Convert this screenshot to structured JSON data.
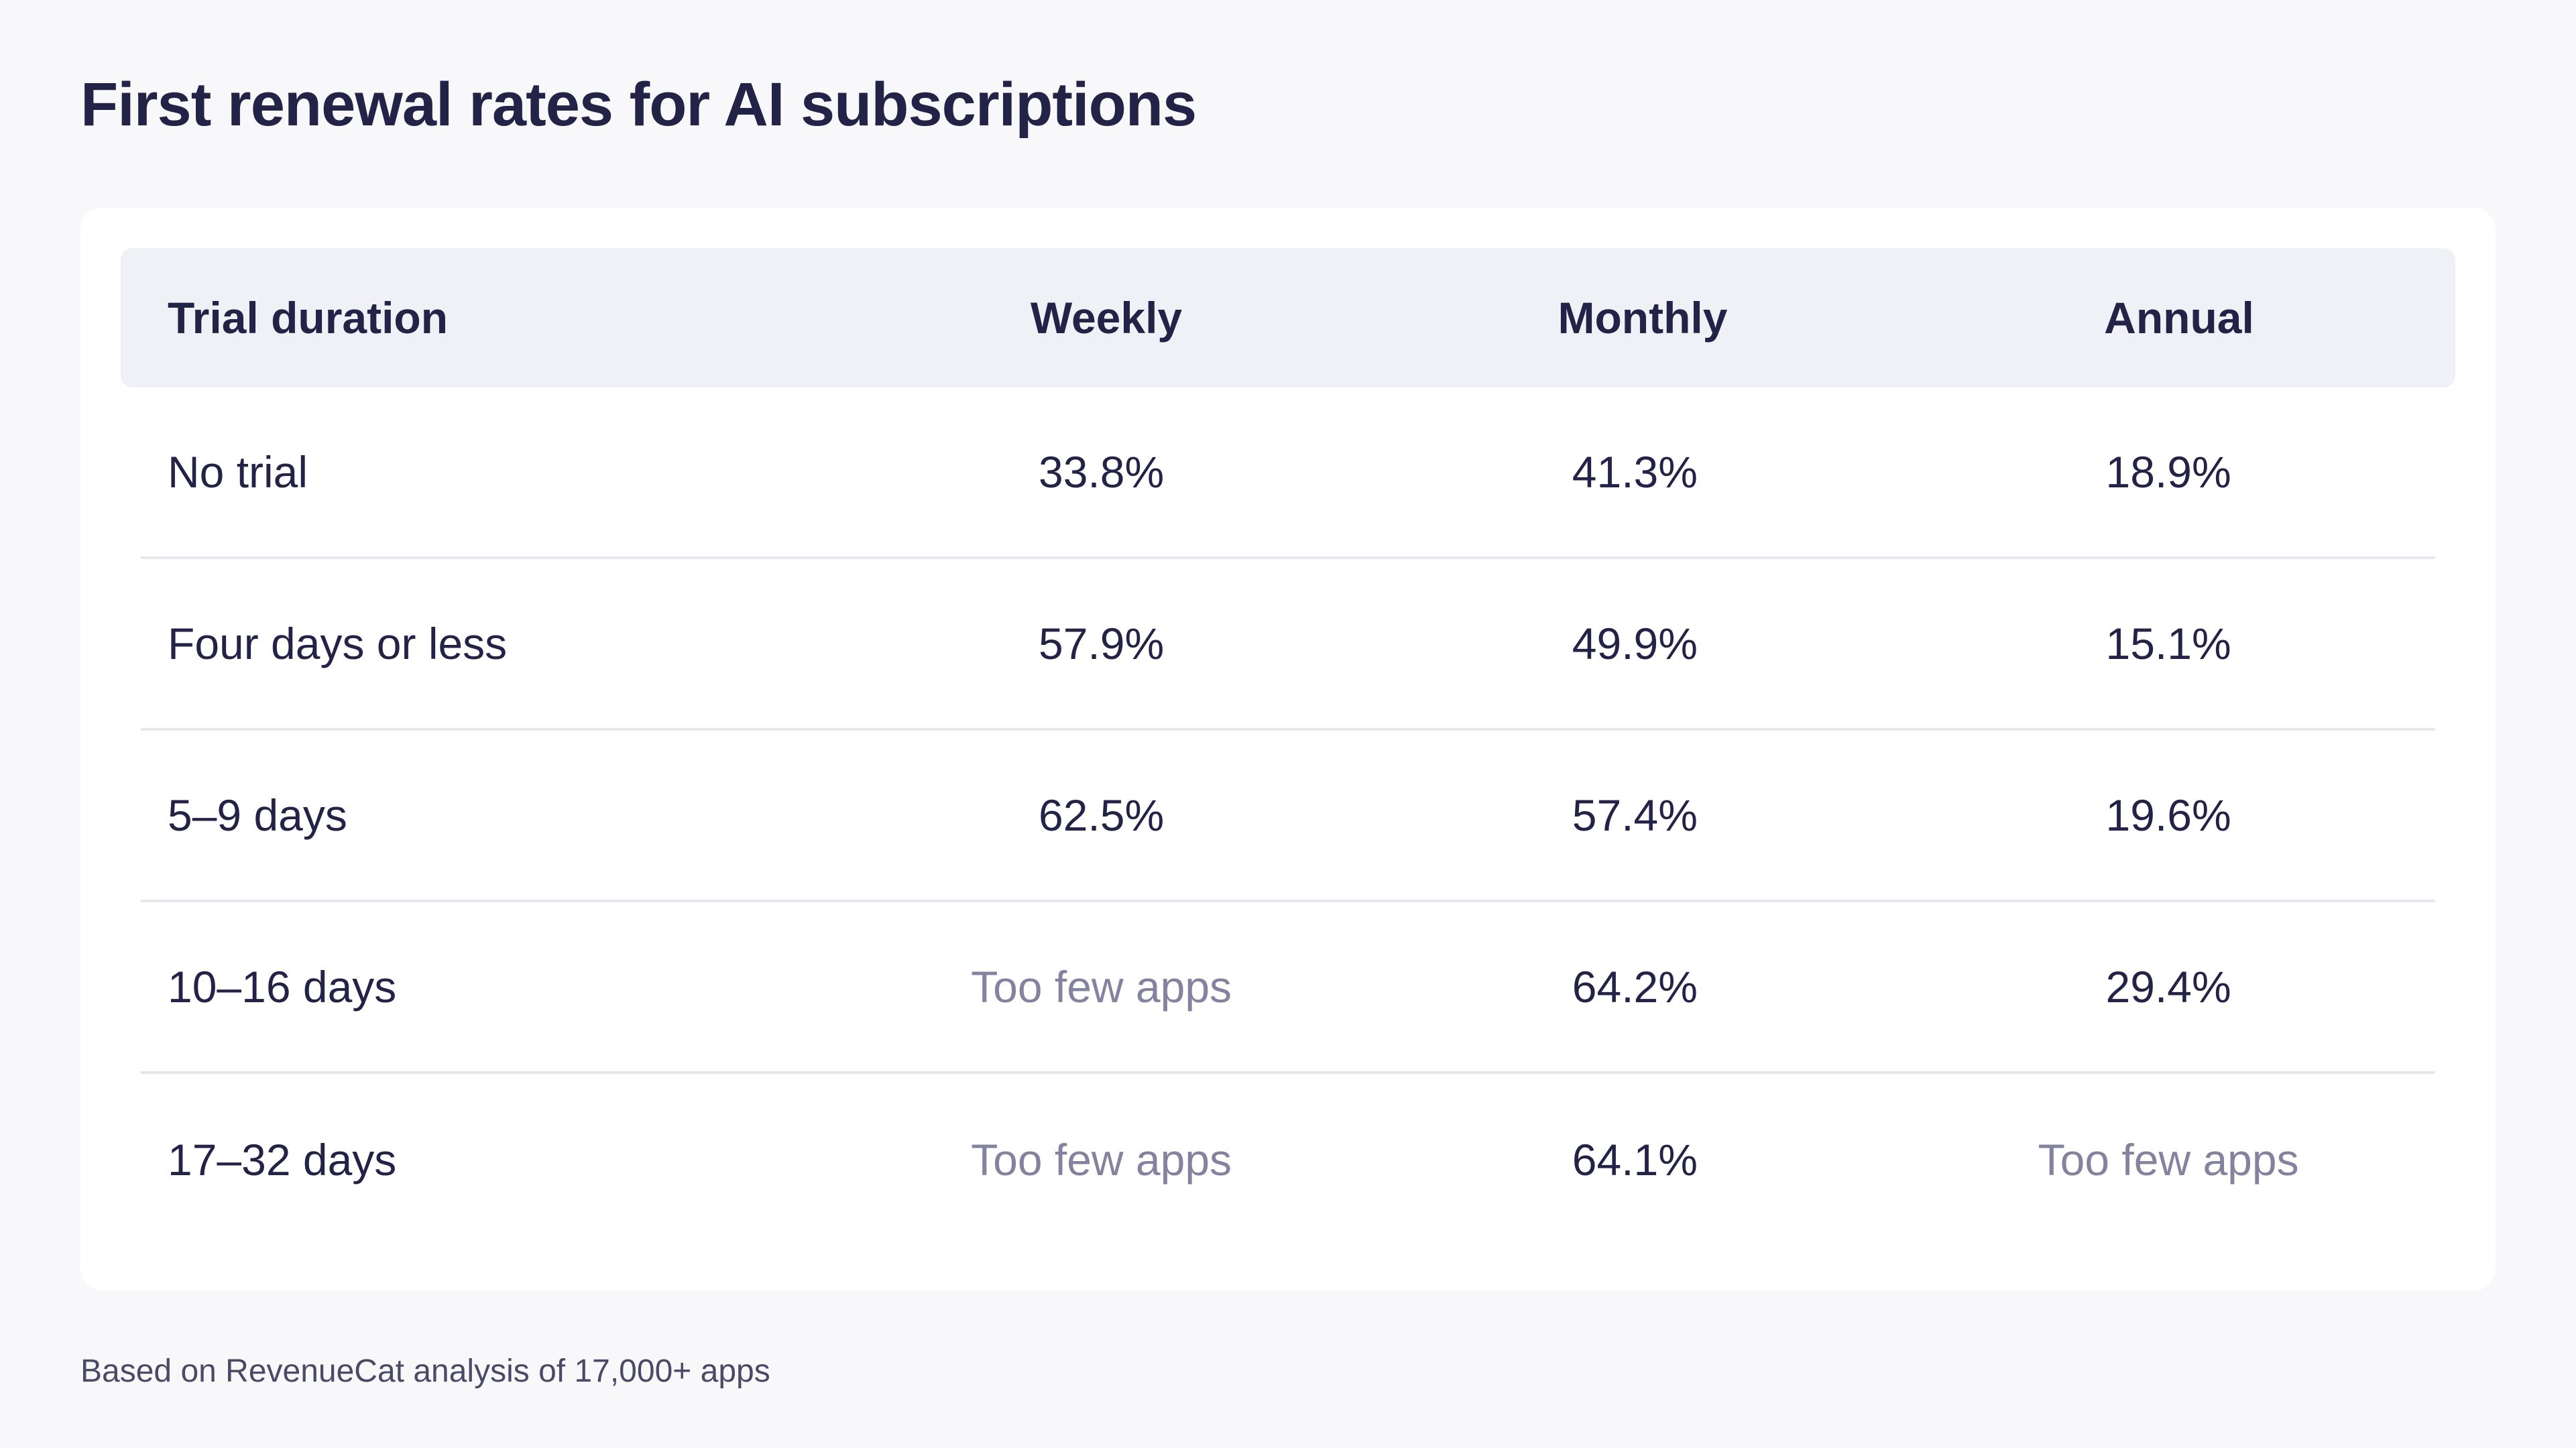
{
  "title": "First renewal rates for AI subscriptions",
  "footnote": "Based on RevenueCat analysis of 17,000+ apps",
  "colors": {
    "text": "#232347",
    "muted": "#83839f",
    "header_bg": "#f0f1f6",
    "divider": "#e6e7ec",
    "page_bg": "#f8f8fa",
    "card_bg": "#ffffff"
  },
  "chart_data": {
    "type": "table",
    "title": "First renewal rates for AI subscriptions",
    "columns": [
      "Trial duration",
      "Weekly",
      "Monthly",
      "Annual"
    ],
    "rows": [
      {
        "label": "No trial",
        "values": [
          "33.8%",
          "41.3%",
          "18.9%"
        ]
      },
      {
        "label": "Four days or less",
        "values": [
          "57.9%",
          "49.9%",
          "15.1%"
        ]
      },
      {
        "label": "5–9 days",
        "values": [
          "62.5%",
          "57.4%",
          "19.6%"
        ]
      },
      {
        "label": "10–16 days",
        "values": [
          "Too few apps",
          "64.2%",
          "29.4%"
        ]
      },
      {
        "label": "17–32 days",
        "values": [
          "Too few apps",
          "64.1%",
          "Too few apps"
        ]
      }
    ]
  }
}
